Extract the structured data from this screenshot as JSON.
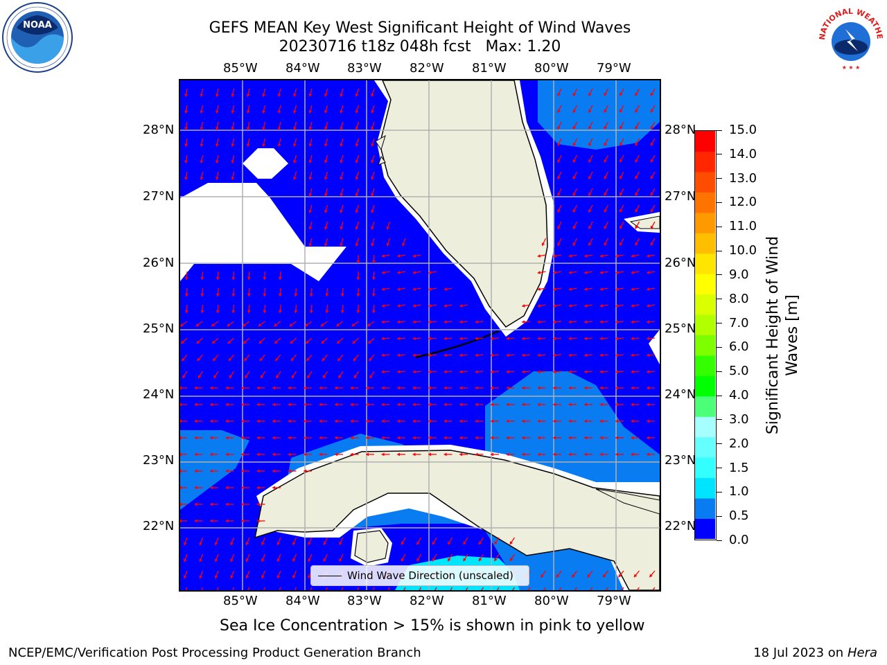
{
  "title": {
    "line1": "GEFS MEAN Key West Significant Height of Wind Waves",
    "line2": "20230716 t18z 048h fcst   Max: 1.20"
  },
  "logos": {
    "left": {
      "name": "NOARA logo",
      "ring_text": "NATIONAL OCEANIC AND ATMOSPHERIC ADMINISTRATION · U.S. DEPARTMENT OF COMMERCE",
      "center_text": "NOAA"
    },
    "right": {
      "name": "National Weather Service logo",
      "ring_text": "NATIONAL WEATHER SERVICE"
    }
  },
  "map": {
    "lon_labels": [
      "85°W",
      "84°W",
      "83°W",
      "82°W",
      "81°W",
      "80°W",
      "79°W"
    ],
    "lat_labels": [
      "28°N",
      "27°N",
      "26°N",
      "25°N",
      "24°N",
      "23°N",
      "22°N"
    ],
    "legend": "Wind Wave Direction (unscaled)",
    "colors": {
      "land": "#eeeedd",
      "ocean_0": "#0000ff",
      "ocean_05": "#0a7cf2",
      "arrow": "#ff0000",
      "grid": "#b0b0b0",
      "coast": "#000000"
    }
  },
  "colorbar": {
    "label": "Significant Height of Wind Waves [m]",
    "ticks": [
      "15.0",
      "14.0",
      "13.0",
      "12.0",
      "11.0",
      "10.0",
      "9.0",
      "8.0",
      "7.0",
      "6.0",
      "5.0",
      "4.0",
      "3.0",
      "2.0",
      "1.5",
      "1.0",
      "0.5",
      "0.0"
    ],
    "bands": [
      "#0000ff",
      "#0a7cf2",
      "#00e5ff",
      "#33ffff",
      "#66ffff",
      "#a6ffff",
      "#4cff79",
      "#00ff00",
      "#33ff00",
      "#7dff00",
      "#b2ff00",
      "#d9ff00",
      "#ffff00",
      "#ffe500",
      "#ffbf00",
      "#ff9900",
      "#ff7300",
      "#ff4d00",
      "#ff2600",
      "#ff0000"
    ]
  },
  "note": "Sea Ice Concentration > 15% is shown in pink to yellow",
  "footer": {
    "left": "NCEP/EMC/Verification Post Processing Product Generation Branch",
    "right_prefix": "18 Jul 2023 on ",
    "right_italic": "Hera"
  }
}
